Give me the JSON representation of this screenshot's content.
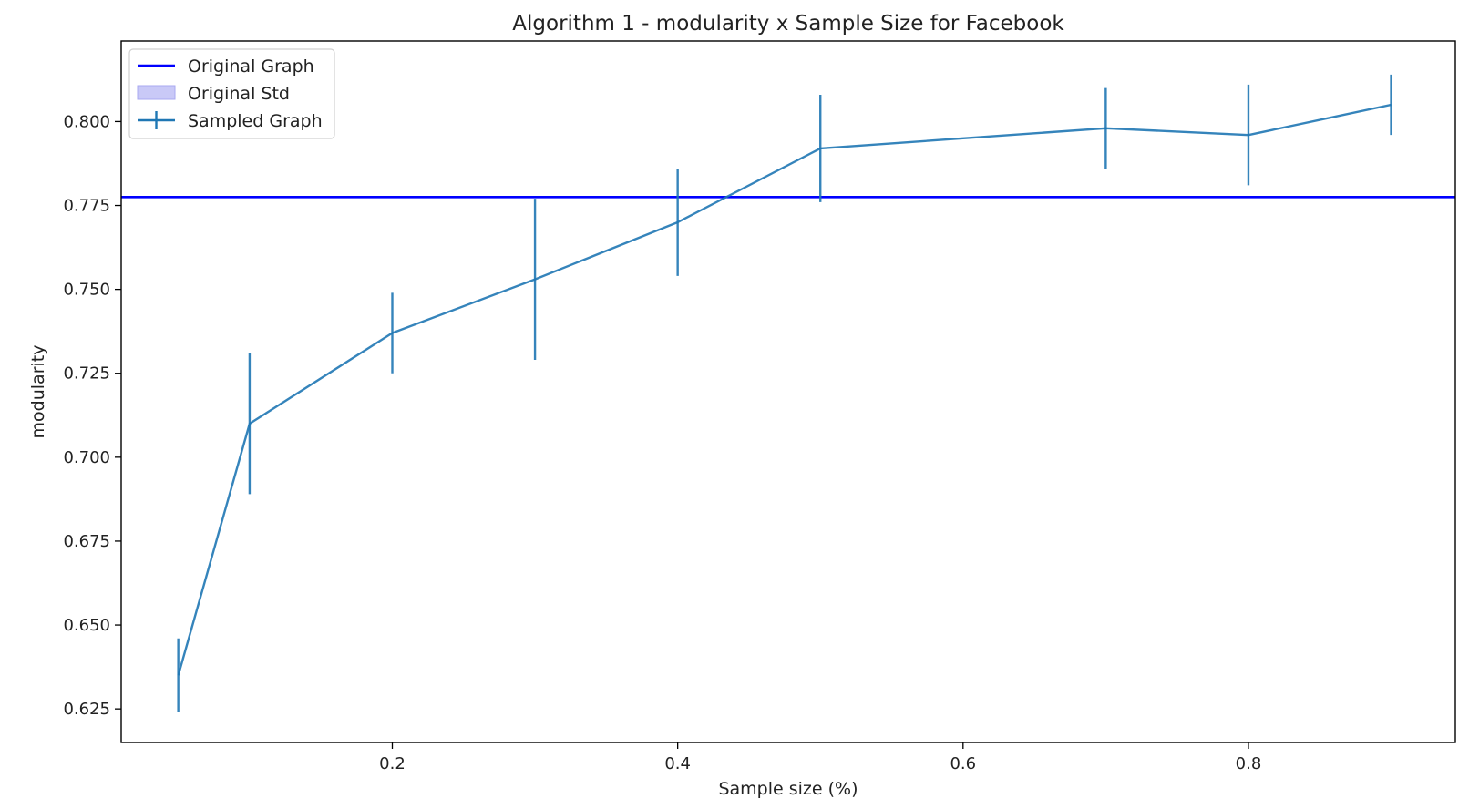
{
  "chart_data": {
    "type": "line",
    "title": "Algorithm 1 - modularity x Sample Size for Facebook",
    "xlabel": "Sample size (%)",
    "ylabel": "modularity",
    "xlim": [
      0.01,
      0.945
    ],
    "ylim": [
      0.615,
      0.824
    ],
    "x_ticks": [
      0.2,
      0.4,
      0.6,
      0.8
    ],
    "x_tick_labels": [
      "0.2",
      "0.4",
      "0.6",
      "0.8"
    ],
    "y_ticks": [
      0.625,
      0.65,
      0.675,
      0.7,
      0.725,
      0.75,
      0.775,
      0.8
    ],
    "y_tick_labels": [
      "0.625",
      "0.650",
      "0.675",
      "0.700",
      "0.725",
      "0.750",
      "0.775",
      "0.800"
    ],
    "grid": false,
    "legend": {
      "placement": "top-left",
      "entries": [
        "Original Graph",
        "Original Std",
        "Sampled Graph"
      ]
    },
    "original": {
      "name": "Original Graph",
      "value": 0.7775,
      "std_label": "Original Std",
      "color": "#0000ff",
      "std_color": "#c9c9f7"
    },
    "series": [
      {
        "name": "Sampled Graph",
        "color": "#1f77b4",
        "x": [
          0.05,
          0.1,
          0.2,
          0.3,
          0.4,
          0.5,
          0.7,
          0.8,
          0.9
        ],
        "y": [
          0.635,
          0.71,
          0.737,
          0.753,
          0.77,
          0.792,
          0.798,
          0.796,
          0.805
        ],
        "err": [
          0.011,
          0.021,
          0.012,
          0.024,
          0.016,
          0.016,
          0.012,
          0.015,
          0.009
        ]
      }
    ]
  }
}
